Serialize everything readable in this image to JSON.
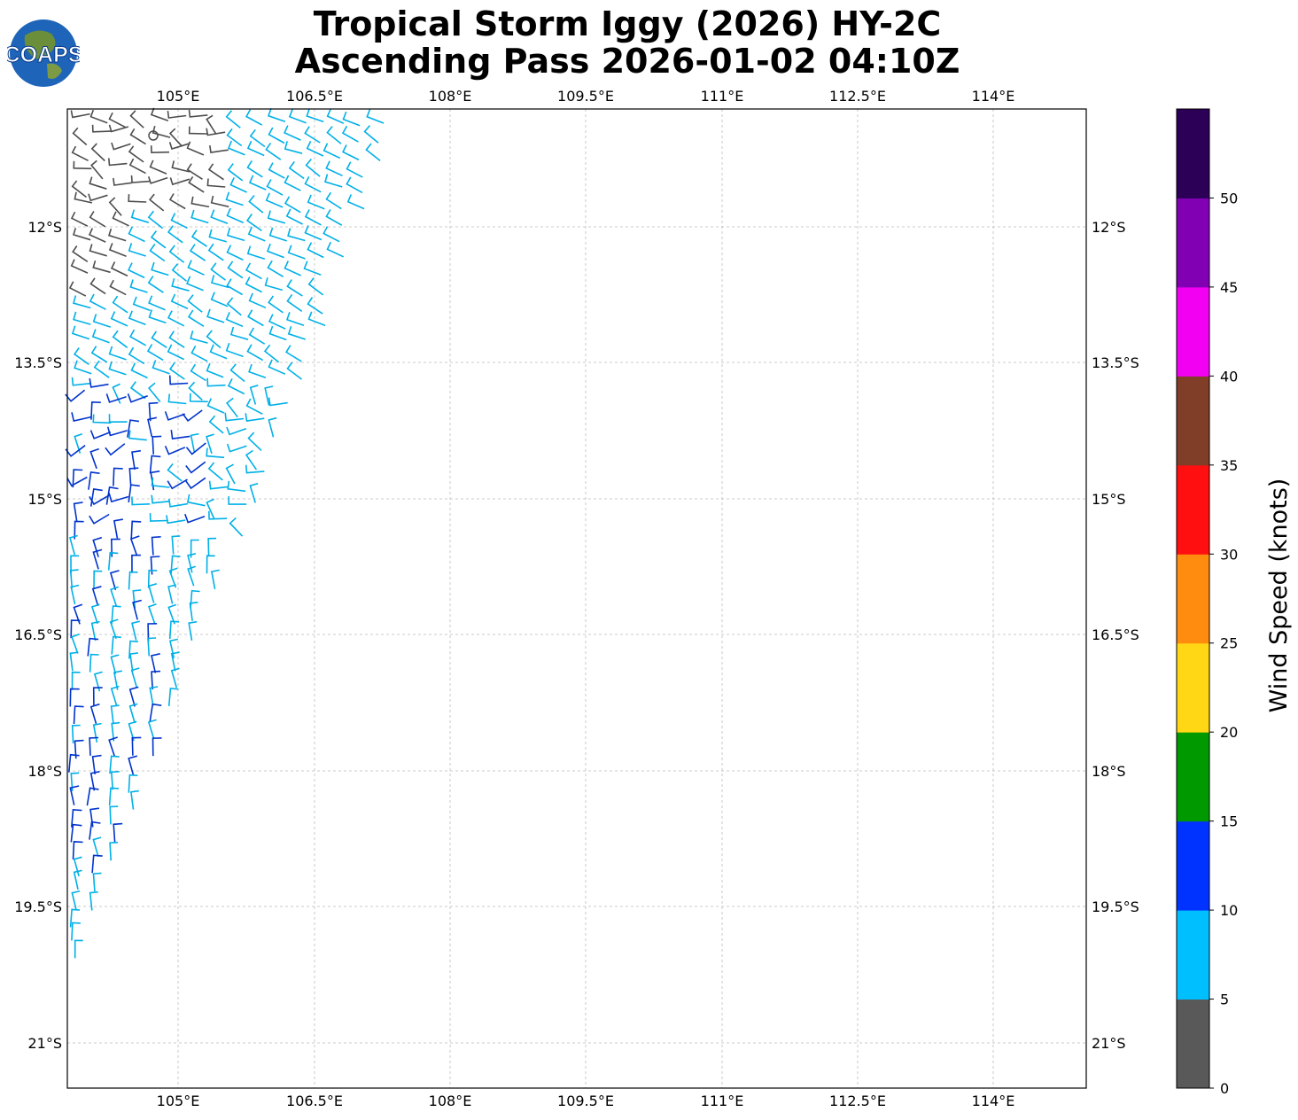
{
  "title_line1": "Tropical Storm Iggy (2026) HY-2C",
  "title_line2": "Ascending Pass 2026-01-02 04:10Z",
  "logo_text": "COAPS",
  "logo_icon": "globe-icon",
  "map": {
    "lon_ticks": [
      "105°E",
      "106.5°E",
      "108°E",
      "109.5°E",
      "111°E",
      "112.5°E",
      "114°E"
    ],
    "lat_ticks": [
      "12°S",
      "13.5°S",
      "15°S",
      "16.5°S",
      "18°S",
      "19.5°S",
      "21°S"
    ],
    "gridlines": true
  },
  "colorbar": {
    "label": "Wind Speed (knots)",
    "ticks": [
      "0",
      "5",
      "10",
      "15",
      "20",
      "25",
      "30",
      "35",
      "40",
      "45",
      "50"
    ],
    "colors": [
      "#595959",
      "#00bfff",
      "#0033ff",
      "#009900",
      "#ffd714",
      "#ff8c0f",
      "#ff0f0f",
      "#803d28",
      "#f200f2",
      "#8200b4",
      "#2b0056"
    ]
  },
  "wind_barbs": {
    "low_color": "#4d4d4d",
    "mid_color": "#00b0e8",
    "high_color": "#0033cc"
  }
}
